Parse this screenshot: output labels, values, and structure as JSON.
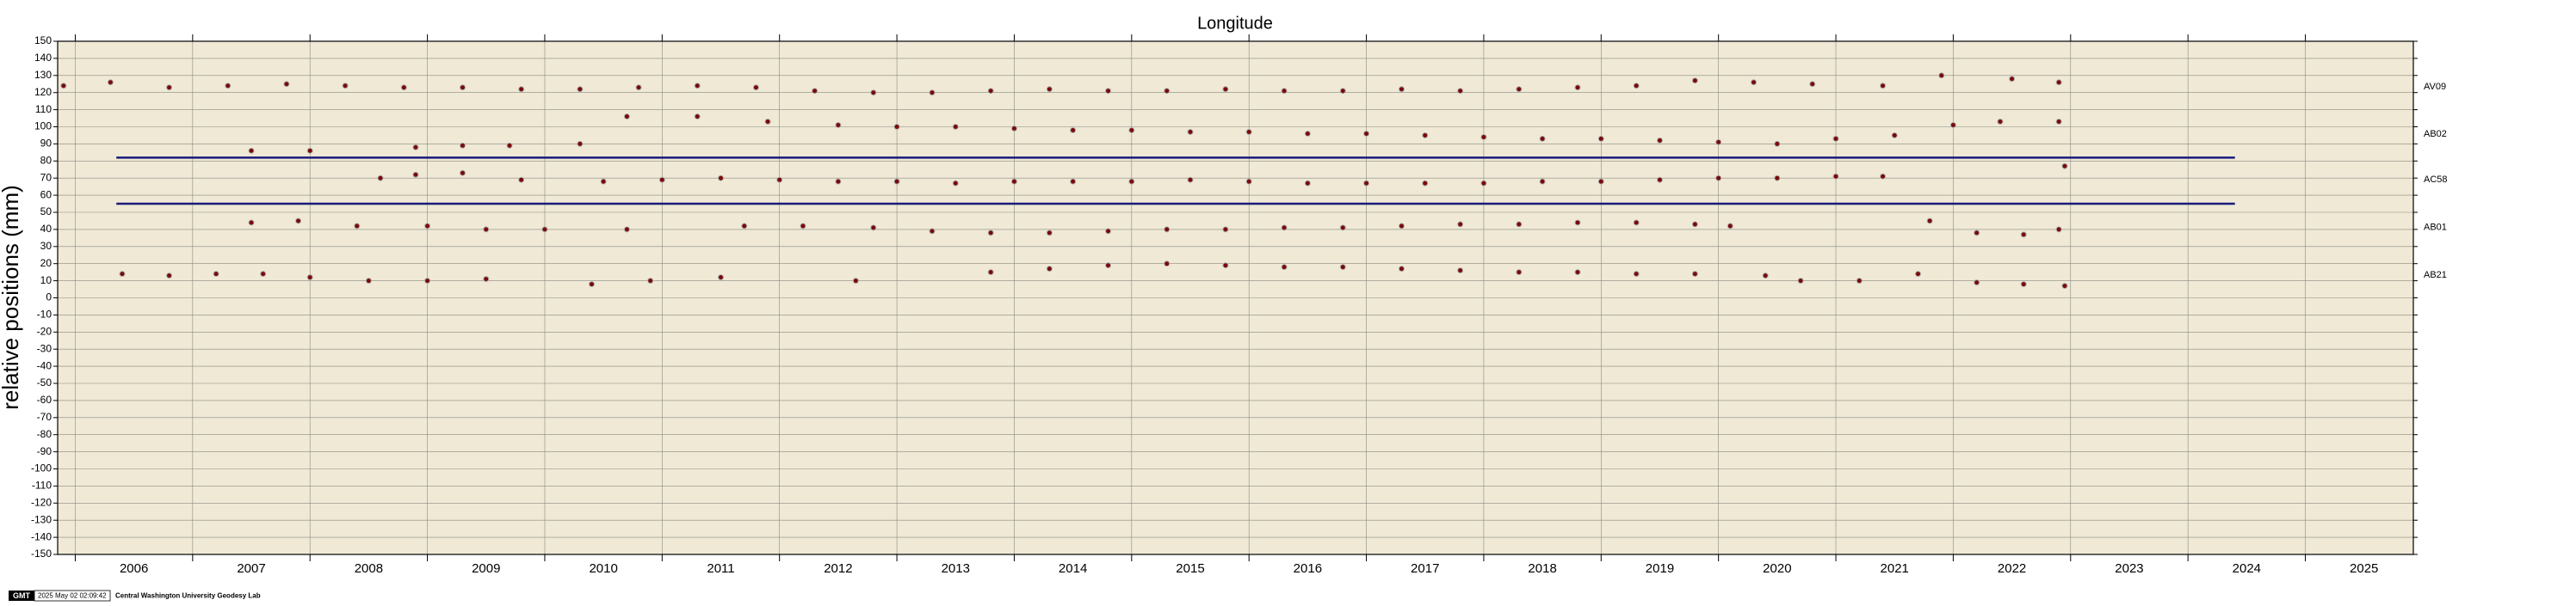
{
  "chart_data": {
    "type": "scatter",
    "title": "Longitude",
    "y_label": "relative positions (mm)",
    "xlim": [
      2005.85,
      2025.92
    ],
    "ylim": [
      -150,
      150
    ],
    "xticks": [
      2006,
      2007,
      2008,
      2009,
      2010,
      2011,
      2012,
      2013,
      2014,
      2015,
      2016,
      2017,
      2018,
      2019,
      2020,
      2021,
      2022,
      2023,
      2024,
      2025
    ],
    "yticks": [
      -150,
      -140,
      -130,
      -120,
      -110,
      -100,
      -90,
      -80,
      -70,
      -60,
      -50,
      -40,
      -30,
      -20,
      -10,
      0,
      10,
      20,
      30,
      40,
      50,
      60,
      70,
      80,
      90,
      100,
      110,
      120,
      130,
      140,
      150
    ],
    "grid": true,
    "background": "#efe9d6",
    "series": [
      {
        "name": "AV09",
        "color": "#7a0a0a",
        "x": [
          2005.9,
          2006.3,
          2006.8,
          2007.3,
          2007.8,
          2008.3,
          2008.8,
          2009.3,
          2009.8,
          2010.3,
          2010.8,
          2011.3,
          2011.8,
          2012.3,
          2012.8,
          2013.3,
          2013.8,
          2014.3,
          2014.8,
          2015.3,
          2015.8,
          2016.3,
          2016.8,
          2017.3,
          2017.8,
          2018.3,
          2018.8,
          2019.3,
          2019.8,
          2020.3,
          2020.8,
          2021.4,
          2021.9,
          2022.5,
          2022.9
        ],
        "values": [
          124,
          126,
          123,
          124,
          125,
          124,
          123,
          123,
          122,
          122,
          123,
          124,
          123,
          121,
          120,
          120,
          121,
          122,
          121,
          121,
          122,
          121,
          121,
          122,
          121,
          122,
          123,
          124,
          127,
          126,
          125,
          124,
          130,
          128,
          126
        ]
      },
      {
        "name": "AB02",
        "color": "#7a0a0a",
        "x": [
          2007.5,
          2008.0,
          2008.9,
          2009.3,
          2009.7,
          2010.3,
          2010.7,
          2011.3,
          2011.9,
          2012.5,
          2013.0,
          2013.5,
          2014.0,
          2014.5,
          2015.0,
          2015.5,
          2016.0,
          2016.5,
          2017.0,
          2017.5,
          2018.0,
          2018.5,
          2019.0,
          2019.5,
          2020.0,
          2020.5,
          2021.0,
          2021.5,
          2022.0,
          2022.4,
          2022.9
        ],
        "values": [
          86,
          86,
          88,
          89,
          89,
          90,
          106,
          106,
          103,
          101,
          100,
          100,
          99,
          98,
          98,
          97,
          97,
          96,
          96,
          95,
          94,
          93,
          93,
          92,
          91,
          90,
          93,
          95,
          101,
          103,
          103
        ]
      },
      {
        "name": "AC58",
        "color": "#7a0a0a",
        "x": [
          2008.6,
          2008.9,
          2009.3,
          2009.8,
          2010.5,
          2011.0,
          2011.5,
          2012.0,
          2012.5,
          2013.0,
          2013.5,
          2014.0,
          2014.5,
          2015.0,
          2015.5,
          2016.0,
          2016.5,
          2017.0,
          2017.5,
          2018.0,
          2018.5,
          2019.0,
          2019.5,
          2020.0,
          2020.5,
          2021.0,
          2021.4,
          2022.95
        ],
        "values": [
          70,
          72,
          73,
          69,
          68,
          69,
          70,
          69,
          68,
          68,
          67,
          68,
          68,
          68,
          69,
          68,
          67,
          67,
          67,
          67,
          68,
          68,
          69,
          70,
          70,
          71,
          71,
          77
        ]
      },
      {
        "name": "AB01",
        "color": "#7a0a0a",
        "x": [
          2007.5,
          2007.9,
          2008.4,
          2009.0,
          2009.5,
          2010.0,
          2010.7,
          2011.7,
          2012.2,
          2012.8,
          2013.3,
          2013.8,
          2014.3,
          2014.8,
          2015.3,
          2015.8,
          2016.3,
          2016.8,
          2017.3,
          2017.8,
          2018.3,
          2018.8,
          2019.3,
          2019.8,
          2020.1,
          2021.8,
          2022.2,
          2022.6,
          2022.9
        ],
        "values": [
          44,
          45,
          42,
          42,
          40,
          40,
          40,
          42,
          42,
          41,
          39,
          38,
          38,
          39,
          40,
          40,
          41,
          41,
          42,
          43,
          43,
          44,
          44,
          43,
          42,
          45,
          38,
          37,
          40
        ]
      },
      {
        "name": "AB21",
        "color": "#7a0a0a",
        "x": [
          2006.4,
          2006.8,
          2007.2,
          2007.6,
          2008.0,
          2008.5,
          2009.0,
          2009.5,
          2010.4,
          2010.9,
          2011.5,
          2012.65,
          2013.8,
          2014.3,
          2014.8,
          2015.3,
          2015.8,
          2016.3,
          2016.8,
          2017.3,
          2017.8,
          2018.3,
          2018.8,
          2019.3,
          2019.8,
          2020.4,
          2020.7,
          2021.2,
          2021.7,
          2022.2,
          2022.6,
          2022.95
        ],
        "values": [
          14,
          13,
          14,
          14,
          12,
          10,
          10,
          11,
          8,
          10,
          12,
          10,
          15,
          17,
          19,
          20,
          19,
          18,
          18,
          17,
          16,
          15,
          15,
          14,
          14,
          13,
          10,
          10,
          14,
          9,
          8,
          7
        ]
      }
    ],
    "reference_lines": [
      {
        "value": 82,
        "xlim": [
          2006.35,
          2024.4
        ],
        "color": "#1a1a7a"
      },
      {
        "value": 55,
        "xlim": [
          2006.35,
          2024.4
        ],
        "color": "#1a1a7a"
      }
    ],
    "footer": {
      "badge": "GMT",
      "timestamp": "2025 May 02 02:09:42",
      "credit": "Central Washington University Geodesy Lab"
    }
  }
}
